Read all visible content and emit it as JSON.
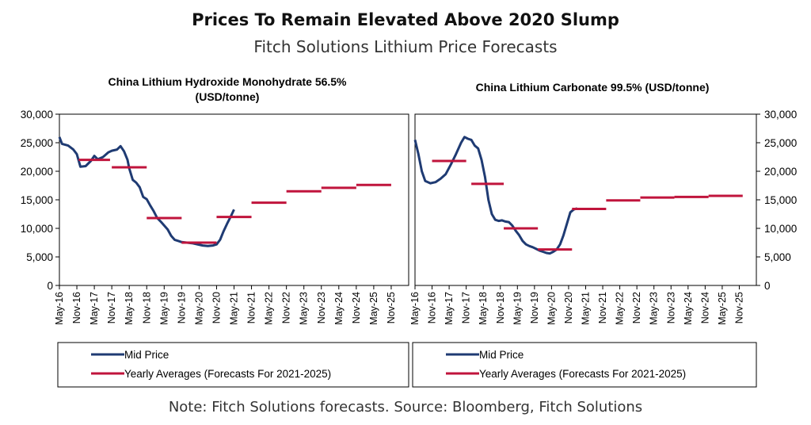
{
  "header": {
    "title": "Prices To Remain Elevated Above 2020 Slump",
    "subtitle": "Fitch Solutions Lithium Price Forecasts"
  },
  "footer": {
    "note": "Note: Fitch Solutions forecasts. Source: Bloomberg, Fitch Solutions"
  },
  "colors": {
    "mid_price": "#1f3b73",
    "averages": "#c0143c"
  },
  "chart_data": [
    {
      "type": "line",
      "title_lines": [
        "China Lithium Hydroxide Monohydrate 56.5%",
        "(USD/tonne)"
      ],
      "y_axis_side": "left",
      "ylim": [
        0,
        30000
      ],
      "yticks": [
        "0",
        "5,000",
        "10,000",
        "15,000",
        "20,000",
        "25,000",
        "30,000"
      ],
      "x_categories": [
        "May-16",
        "Nov-16",
        "May-17",
        "Nov-17",
        "May-18",
        "Nov-18",
        "May-19",
        "Nov-19",
        "May-20",
        "Nov-20",
        "May-21",
        "Nov-21",
        "May-22",
        "Nov-22",
        "May-23",
        "Nov-23",
        "May-24",
        "Nov-24",
        "May-25",
        "Nov-25"
      ],
      "series": [
        {
          "name": "Mid Price",
          "kind": "line",
          "points": [
            [
              0,
              26000
            ],
            [
              0.15,
              24800
            ],
            [
              0.5,
              24500
            ],
            [
              0.8,
              23800
            ],
            [
              1.0,
              23000
            ],
            [
              1.2,
              20800
            ],
            [
              1.5,
              20900
            ],
            [
              1.8,
              21800
            ],
            [
              2.0,
              22700
            ],
            [
              2.2,
              22100
            ],
            [
              2.5,
              22500
            ],
            [
              2.8,
              23300
            ],
            [
              3.0,
              23600
            ],
            [
              3.3,
              23800
            ],
            [
              3.5,
              24400
            ],
            [
              3.7,
              23500
            ],
            [
              3.9,
              22000
            ],
            [
              4.0,
              20500
            ],
            [
              4.2,
              18500
            ],
            [
              4.4,
              18000
            ],
            [
              4.6,
              17200
            ],
            [
              4.8,
              15500
            ],
            [
              5.0,
              15100
            ],
            [
              5.2,
              14000
            ],
            [
              5.4,
              13000
            ],
            [
              5.6,
              11800
            ],
            [
              5.8,
              11200
            ],
            [
              6.0,
              10500
            ],
            [
              6.2,
              9800
            ],
            [
              6.4,
              8700
            ],
            [
              6.6,
              8000
            ],
            [
              6.8,
              7800
            ],
            [
              7.0,
              7600
            ],
            [
              7.3,
              7500
            ],
            [
              7.6,
              7400
            ],
            [
              7.9,
              7200
            ],
            [
              8.2,
              7000
            ],
            [
              8.5,
              6900
            ],
            [
              8.8,
              7000
            ],
            [
              9.0,
              7200
            ],
            [
              9.2,
              8000
            ],
            [
              9.4,
              9500
            ],
            [
              9.6,
              10800
            ],
            [
              9.8,
              12000
            ],
            [
              10.0,
              13300
            ]
          ]
        },
        {
          "name": "Yearly Averages (Forecasts For 2021-2025)",
          "kind": "steps",
          "segments": [
            [
              1.1,
              2.9,
              22000
            ],
            [
              3.0,
              5.0,
              20700
            ],
            [
              5.0,
              7.0,
              11800
            ],
            [
              7.0,
              9.0,
              7500
            ],
            [
              9.0,
              11.0,
              12000
            ],
            [
              11.0,
              13.0,
              14500
            ],
            [
              13.0,
              15.0,
              16500
            ],
            [
              15.0,
              17.0,
              17100
            ],
            [
              17.0,
              19.0,
              17600
            ]
          ]
        }
      ],
      "legend": [
        "Mid Price",
        "Yearly Averages (Forecasts For 2021-2025)"
      ]
    },
    {
      "type": "line",
      "title_lines": [
        "China Lithium Carbonate 99.5% (USD/tonne)"
      ],
      "y_axis_side": "right",
      "ylim": [
        0,
        30000
      ],
      "yticks": [
        "0",
        "5,000",
        "10,000",
        "15,000",
        "20,000",
        "25,000",
        "30,000"
      ],
      "x_categories": [
        "May-16",
        "Nov-16",
        "May-17",
        "Nov-17",
        "May-18",
        "Nov-18",
        "May-19",
        "Nov-19",
        "May-20",
        "Nov-20",
        "May-21",
        "Nov-21",
        "May-22",
        "Nov-22",
        "May-23",
        "Nov-23",
        "May-24",
        "Nov-24",
        "May-25",
        "Nov-25"
      ],
      "series": [
        {
          "name": "Mid Price",
          "kind": "line",
          "points": [
            [
              0,
              25500
            ],
            [
              0.2,
              23000
            ],
            [
              0.4,
              20000
            ],
            [
              0.6,
              18300
            ],
            [
              0.9,
              17900
            ],
            [
              1.2,
              18100
            ],
            [
              1.5,
              18700
            ],
            [
              1.8,
              19500
            ],
            [
              2.1,
              21200
            ],
            [
              2.4,
              23000
            ],
            [
              2.7,
              25000
            ],
            [
              2.9,
              26000
            ],
            [
              3.1,
              25700
            ],
            [
              3.3,
              25500
            ],
            [
              3.5,
              24500
            ],
            [
              3.7,
              24000
            ],
            [
              3.9,
              22000
            ],
            [
              4.1,
              19000
            ],
            [
              4.3,
              15000
            ],
            [
              4.5,
              12500
            ],
            [
              4.7,
              11500
            ],
            [
              4.9,
              11300
            ],
            [
              5.1,
              11400
            ],
            [
              5.3,
              11200
            ],
            [
              5.5,
              11100
            ],
            [
              5.7,
              10500
            ],
            [
              5.9,
              9600
            ],
            [
              6.1,
              8800
            ],
            [
              6.3,
              7800
            ],
            [
              6.5,
              7200
            ],
            [
              6.7,
              6900
            ],
            [
              6.9,
              6700
            ],
            [
              7.1,
              6400
            ],
            [
              7.3,
              6100
            ],
            [
              7.5,
              5900
            ],
            [
              7.7,
              5700
            ],
            [
              7.9,
              5600
            ],
            [
              8.1,
              5900
            ],
            [
              8.3,
              6300
            ],
            [
              8.5,
              7200
            ],
            [
              8.7,
              8800
            ],
            [
              8.9,
              10800
            ],
            [
              9.1,
              12800
            ],
            [
              9.3,
              13300
            ],
            [
              9.5,
              13500
            ]
          ]
        },
        {
          "name": "Yearly Averages (Forecasts For 2021-2025)",
          "kind": "steps",
          "segments": [
            [
              1.0,
              3.0,
              21800
            ],
            [
              3.3,
              5.2,
              17800
            ],
            [
              5.2,
              7.2,
              10000
            ],
            [
              7.2,
              9.2,
              6300
            ],
            [
              9.2,
              11.2,
              13400
            ],
            [
              11.2,
              13.2,
              14900
            ],
            [
              13.2,
              15.2,
              15400
            ],
            [
              15.2,
              17.2,
              15500
            ],
            [
              17.2,
              19.2,
              15700
            ]
          ]
        }
      ],
      "legend": [
        "Mid Price",
        "Yearly Averages (Forecasts For 2021-2025)"
      ]
    }
  ]
}
